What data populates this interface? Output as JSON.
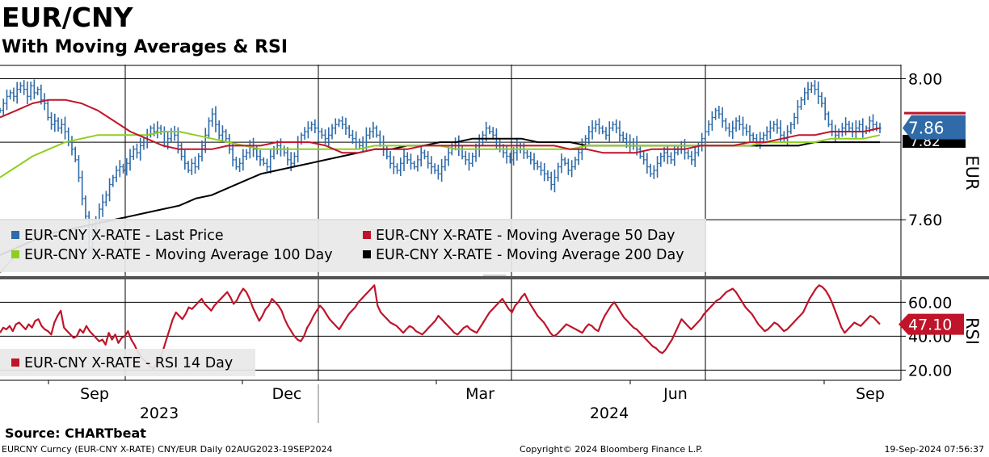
{
  "header": {
    "title": "EUR/CNY",
    "subtitle": "With Moving Averages & RSI"
  },
  "footer": {
    "source": "Source: CHARTbeat",
    "security": "EURCNY Curncy (EUR-CNY X-RATE) CNY/EUR  Daily 02AUG2023-19SEP2024",
    "copyright": "Copyright© 2024 Bloomberg Finance L.P.",
    "timestamp": "19-Sep-2024 07:56:37"
  },
  "chart_data": [
    {
      "type": "line",
      "title": "EUR-CNY X-RATE",
      "ylabel": "EUR",
      "ylim": [
        7.44,
        8.04
      ],
      "yticks": [
        7.6,
        8.0
      ],
      "ytick_labels": [
        "7.60",
        "8.00"
      ],
      "grid": true,
      "legend_position": "bottom-left",
      "x_month_labels": [
        "Sep",
        "Dec",
        "Mar",
        "Jun",
        "Sep"
      ],
      "x_year_labels": [
        "2023",
        "2024"
      ],
      "last_value_labels": {
        "last_price": "7.86",
        "ma200": "7.82"
      },
      "series": [
        {
          "name": "EUR-CNY X-RATE - Last Price",
          "color": "#2f6ba8",
          "style": "bar",
          "values": [
            7.91,
            7.93,
            7.95,
            7.96,
            7.95,
            7.97,
            7.98,
            7.97,
            7.95,
            7.98,
            7.96,
            7.97,
            7.94,
            7.93,
            7.89,
            7.87,
            7.88,
            7.86,
            7.87,
            7.85,
            7.82,
            7.8,
            7.77,
            7.72,
            7.66,
            7.61,
            7.52,
            7.57,
            7.6,
            7.63,
            7.65,
            7.67,
            7.7,
            7.72,
            7.74,
            7.75,
            7.74,
            7.76,
            7.78,
            7.8,
            7.79,
            7.81,
            7.82,
            7.84,
            7.86,
            7.85,
            7.86,
            7.85,
            7.82,
            7.83,
            7.85,
            7.84,
            7.81,
            7.78,
            7.76,
            7.74,
            7.76,
            7.75,
            7.78,
            7.81,
            7.84,
            7.88,
            7.9,
            7.87,
            7.84,
            7.85,
            7.83,
            7.8,
            7.77,
            7.75,
            7.76,
            7.78,
            7.79,
            7.81,
            7.8,
            7.78,
            7.77,
            7.76,
            7.75,
            7.78,
            7.8,
            7.81,
            7.8,
            7.79,
            7.77,
            7.76,
            7.78,
            7.82,
            7.84,
            7.85,
            7.86,
            7.87,
            7.86,
            7.85,
            7.84,
            7.83,
            7.84,
            7.86,
            7.87,
            7.88,
            7.87,
            7.86,
            7.84,
            7.83,
            7.82,
            7.81,
            7.82,
            7.84,
            7.85,
            7.86,
            7.84,
            7.82,
            7.8,
            7.78,
            7.76,
            7.75,
            7.74,
            7.76,
            7.78,
            7.77,
            7.76,
            7.75,
            7.77,
            7.79,
            7.78,
            7.76,
            7.75,
            7.74,
            7.73,
            7.75,
            7.77,
            7.79,
            7.81,
            7.82,
            7.8,
            7.78,
            7.77,
            7.76,
            7.78,
            7.8,
            7.82,
            7.84,
            7.86,
            7.85,
            7.84,
            7.82,
            7.8,
            7.79,
            7.78,
            7.77,
            7.79,
            7.81,
            7.8,
            7.79,
            7.78,
            7.77,
            7.76,
            7.75,
            7.74,
            7.73,
            7.72,
            7.7,
            7.72,
            7.75,
            7.77,
            7.76,
            7.74,
            7.75,
            7.77,
            7.79,
            7.81,
            7.83,
            7.85,
            7.86,
            7.87,
            7.86,
            7.85,
            7.84,
            7.86,
            7.87,
            7.86,
            7.84,
            7.83,
            7.82,
            7.81,
            7.82,
            7.8,
            7.78,
            7.77,
            7.75,
            7.73,
            7.74,
            7.76,
            7.78,
            7.79,
            7.78,
            7.77,
            7.79,
            7.8,
            7.81,
            7.79,
            7.78,
            7.77,
            7.79,
            7.81,
            7.83,
            7.85,
            7.87,
            7.89,
            7.91,
            7.9,
            7.88,
            7.86,
            7.85,
            7.86,
            7.88,
            7.87,
            7.86,
            7.85,
            7.84,
            7.83,
            7.82,
            7.83,
            7.84,
            7.85,
            7.86,
            7.87,
            7.86,
            7.84,
            7.83,
            7.85,
            7.87,
            7.89,
            7.92,
            7.94,
            7.96,
            7.97,
            7.98,
            7.97,
            7.95,
            7.93,
            7.9,
            7.87,
            7.85,
            7.84,
            7.85,
            7.86,
            7.87,
            7.86,
            7.85,
            7.86,
            7.87,
            7.85,
            7.86,
            7.88,
            7.87,
            7.86,
            7.86
          ]
        },
        {
          "name": "EUR-CNY X-RATE - Moving Average 50 Day",
          "color": "#c0142a",
          "style": "line",
          "values": [
            7.89,
            7.91,
            7.93,
            7.94,
            7.94,
            7.93,
            7.91,
            7.88,
            7.85,
            7.83,
            7.81,
            7.8,
            7.8,
            7.8,
            7.81,
            7.81,
            7.81,
            7.82,
            7.82,
            7.82,
            7.81,
            7.79,
            7.79,
            7.8,
            7.8,
            7.8,
            7.81,
            7.81,
            7.81,
            7.81,
            7.81,
            7.81,
            7.81,
            7.81,
            7.81,
            7.8,
            7.8,
            7.79,
            7.79,
            7.79,
            7.8,
            7.8,
            7.8,
            7.81,
            7.81,
            7.81,
            7.82,
            7.82,
            7.83,
            7.84,
            7.84,
            7.85,
            7.85,
            7.85,
            7.86
          ]
        },
        {
          "name": "EUR-CNY X-RATE - Moving Average 100 Day",
          "color": "#8fce1e",
          "style": "line",
          "values": [
            7.72,
            7.75,
            7.78,
            7.8,
            7.82,
            7.83,
            7.84,
            7.84,
            7.84,
            7.84,
            7.85,
            7.85,
            7.84,
            7.83,
            7.82,
            7.81,
            7.8,
            7.8,
            7.8,
            7.8,
            7.8,
            7.8,
            7.8,
            7.81,
            7.81,
            7.81,
            7.81,
            7.81,
            7.8,
            7.8,
            7.8,
            7.8,
            7.8,
            7.8,
            7.8,
            7.8,
            7.81,
            7.81,
            7.81,
            7.81,
            7.81,
            7.81,
            7.81,
            7.81,
            7.81,
            7.81,
            7.81,
            7.82,
            7.82,
            7.82,
            7.82,
            7.83,
            7.83,
            7.83,
            7.84
          ]
        },
        {
          "name": "EUR-CNY X-RATE - Moving Average 200 Day",
          "color": "#000000",
          "style": "line",
          "values": [
            7.5,
            7.52,
            7.54,
            7.56,
            7.57,
            7.58,
            7.59,
            7.6,
            7.61,
            7.62,
            7.63,
            7.64,
            7.66,
            7.67,
            7.69,
            7.71,
            7.73,
            7.74,
            7.75,
            7.76,
            7.77,
            7.78,
            7.79,
            7.8,
            7.8,
            7.81,
            7.81,
            7.82,
            7.82,
            7.83,
            7.83,
            7.83,
            7.83,
            7.82,
            7.82,
            7.82,
            7.81,
            7.81,
            7.81,
            7.81,
            7.81,
            7.81,
            7.81,
            7.81,
            7.81,
            7.81,
            7.81,
            7.81,
            7.81,
            7.81,
            7.82,
            7.82,
            7.82,
            7.82,
            7.82
          ]
        }
      ]
    },
    {
      "type": "line",
      "title": "RSI",
      "ylabel": "RSI",
      "ylim": [
        14,
        73
      ],
      "yticks": [
        20,
        40,
        60
      ],
      "ytick_labels": [
        "20.00",
        "40.00",
        "60.00"
      ],
      "grid": true,
      "legend_position": "bottom-left",
      "last_value_label": "47.10",
      "series": [
        {
          "name": "EUR-CNY X-RATE - RSI 14 Day",
          "color": "#c0142a",
          "values": [
            42,
            45,
            44,
            46,
            43,
            47,
            48,
            46,
            44,
            47,
            45,
            49,
            50,
            46,
            44,
            43,
            41,
            48,
            52,
            55,
            45,
            43,
            41,
            39,
            40,
            44,
            42,
            46,
            43,
            41,
            39,
            37,
            38,
            35,
            42,
            38,
            41,
            36,
            39,
            40,
            43,
            38,
            35,
            31,
            28,
            26,
            24,
            22,
            21,
            24,
            27,
            32,
            38,
            44,
            50,
            54,
            52,
            50,
            53,
            57,
            56,
            58,
            60,
            62,
            59,
            57,
            55,
            58,
            60,
            62,
            64,
            66,
            63,
            59,
            61,
            65,
            68,
            66,
            62,
            57,
            53,
            49,
            52,
            56,
            58,
            62,
            60,
            58,
            55,
            50,
            46,
            43,
            40,
            38,
            37,
            40,
            45,
            48,
            52,
            55,
            58,
            56,
            53,
            50,
            48,
            46,
            44,
            47,
            50,
            53,
            55,
            57,
            60,
            62,
            64,
            66,
            68,
            70,
            58,
            54,
            52,
            50,
            48,
            47,
            46,
            44,
            42,
            44,
            46,
            45,
            43,
            42,
            41,
            43,
            45,
            47,
            49,
            52,
            50,
            48,
            46,
            44,
            42,
            41,
            43,
            45,
            46,
            44,
            43,
            42,
            45,
            48,
            51,
            54,
            56,
            58,
            60,
            62,
            59,
            56,
            54,
            58,
            60,
            63,
            65,
            61,
            58,
            55,
            52,
            50,
            48,
            45,
            42,
            40,
            41,
            43,
            45,
            47,
            46,
            45,
            44,
            43,
            42,
            45,
            47,
            46,
            44,
            43,
            48,
            52,
            55,
            58,
            60,
            57,
            54,
            51,
            49,
            47,
            45,
            44,
            42,
            40,
            38,
            36,
            34,
            33,
            31,
            30,
            32,
            35,
            38,
            42,
            46,
            50,
            48,
            46,
            44,
            46,
            48,
            50,
            53,
            55,
            57,
            59,
            61,
            62,
            64,
            66,
            67,
            68,
            66,
            63,
            60,
            57,
            55,
            53,
            50,
            47,
            45,
            43,
            44,
            46,
            48,
            47,
            45,
            43,
            44,
            46,
            48,
            50,
            52,
            54,
            58,
            62,
            65,
            68,
            70,
            69,
            67,
            64,
            60,
            55,
            50,
            45,
            42,
            44,
            46,
            48,
            47,
            46,
            48,
            50,
            52,
            51,
            49,
            47
          ]
        }
      ]
    }
  ]
}
